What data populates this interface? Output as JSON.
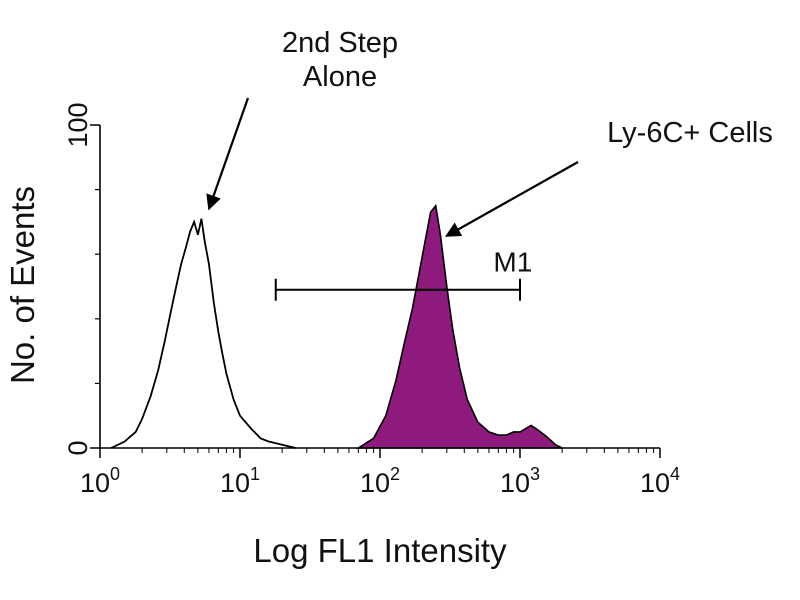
{
  "colors": {
    "filled_series": "#8e1a7e",
    "outline_series": "#000000",
    "axes": "#000000"
  },
  "chart_data": {
    "type": "area",
    "xscale": "log",
    "xlim": [
      1,
      10000
    ],
    "ylim": [
      0,
      100
    ],
    "xlabel": "Log FL1 Intensity",
    "ylabel": "No. of Events",
    "xticks": [
      {
        "value": 1,
        "base": "10",
        "exp": "0"
      },
      {
        "value": 10,
        "base": "10",
        "exp": "1"
      },
      {
        "value": 100,
        "base": "10",
        "exp": "2"
      },
      {
        "value": 1000,
        "base": "10",
        "exp": "3"
      },
      {
        "value": 10000,
        "base": "10",
        "exp": "4"
      }
    ],
    "yticks": [
      {
        "value": 0,
        "label": "0"
      },
      {
        "value": 100,
        "label": "100"
      }
    ],
    "series": [
      {
        "style": "outline",
        "points": [
          [
            1.2,
            0
          ],
          [
            1.5,
            2
          ],
          [
            1.8,
            5
          ],
          [
            2.0,
            9
          ],
          [
            2.3,
            16
          ],
          [
            2.6,
            24
          ],
          [
            2.9,
            33
          ],
          [
            3.2,
            42
          ],
          [
            3.5,
            50
          ],
          [
            3.8,
            57
          ],
          [
            4.1,
            62
          ],
          [
            4.4,
            67
          ],
          [
            4.7,
            70
          ],
          [
            5.0,
            66
          ],
          [
            5.3,
            71
          ],
          [
            5.6,
            64
          ],
          [
            6.0,
            57
          ],
          [
            6.5,
            45
          ],
          [
            7.0,
            36
          ],
          [
            7.5,
            29
          ],
          [
            8.0,
            23
          ],
          [
            9.0,
            15
          ],
          [
            10,
            10
          ],
          [
            12,
            6
          ],
          [
            14,
            3
          ],
          [
            16,
            2
          ],
          [
            20,
            1
          ],
          [
            25,
            0
          ]
        ]
      },
      {
        "style": "filled",
        "points": [
          [
            70,
            0
          ],
          [
            90,
            3
          ],
          [
            110,
            10
          ],
          [
            130,
            21
          ],
          [
            150,
            33
          ],
          [
            170,
            43
          ],
          [
            190,
            54
          ],
          [
            210,
            64
          ],
          [
            230,
            73
          ],
          [
            250,
            75
          ],
          [
            270,
            66
          ],
          [
            300,
            50
          ],
          [
            330,
            37
          ],
          [
            370,
            25
          ],
          [
            420,
            15
          ],
          [
            500,
            8
          ],
          [
            600,
            5
          ],
          [
            700,
            4
          ],
          [
            800,
            4
          ],
          [
            900,
            5
          ],
          [
            1000,
            5
          ],
          [
            1100,
            6
          ],
          [
            1200,
            7
          ],
          [
            1300,
            6
          ],
          [
            1400,
            5
          ],
          [
            1600,
            3
          ],
          [
            1800,
            1
          ],
          [
            2000,
            0
          ]
        ]
      }
    ],
    "marker": {
      "label": "M1",
      "start": 18,
      "end": 1000,
      "y": 49
    },
    "annotations": [
      {
        "lines": [
          "2nd Step",
          "Alone"
        ],
        "x": 6,
        "y": 74
      },
      {
        "lines": [
          "Ly-6C+ Cells"
        ],
        "x": 270,
        "y": 65
      }
    ]
  }
}
